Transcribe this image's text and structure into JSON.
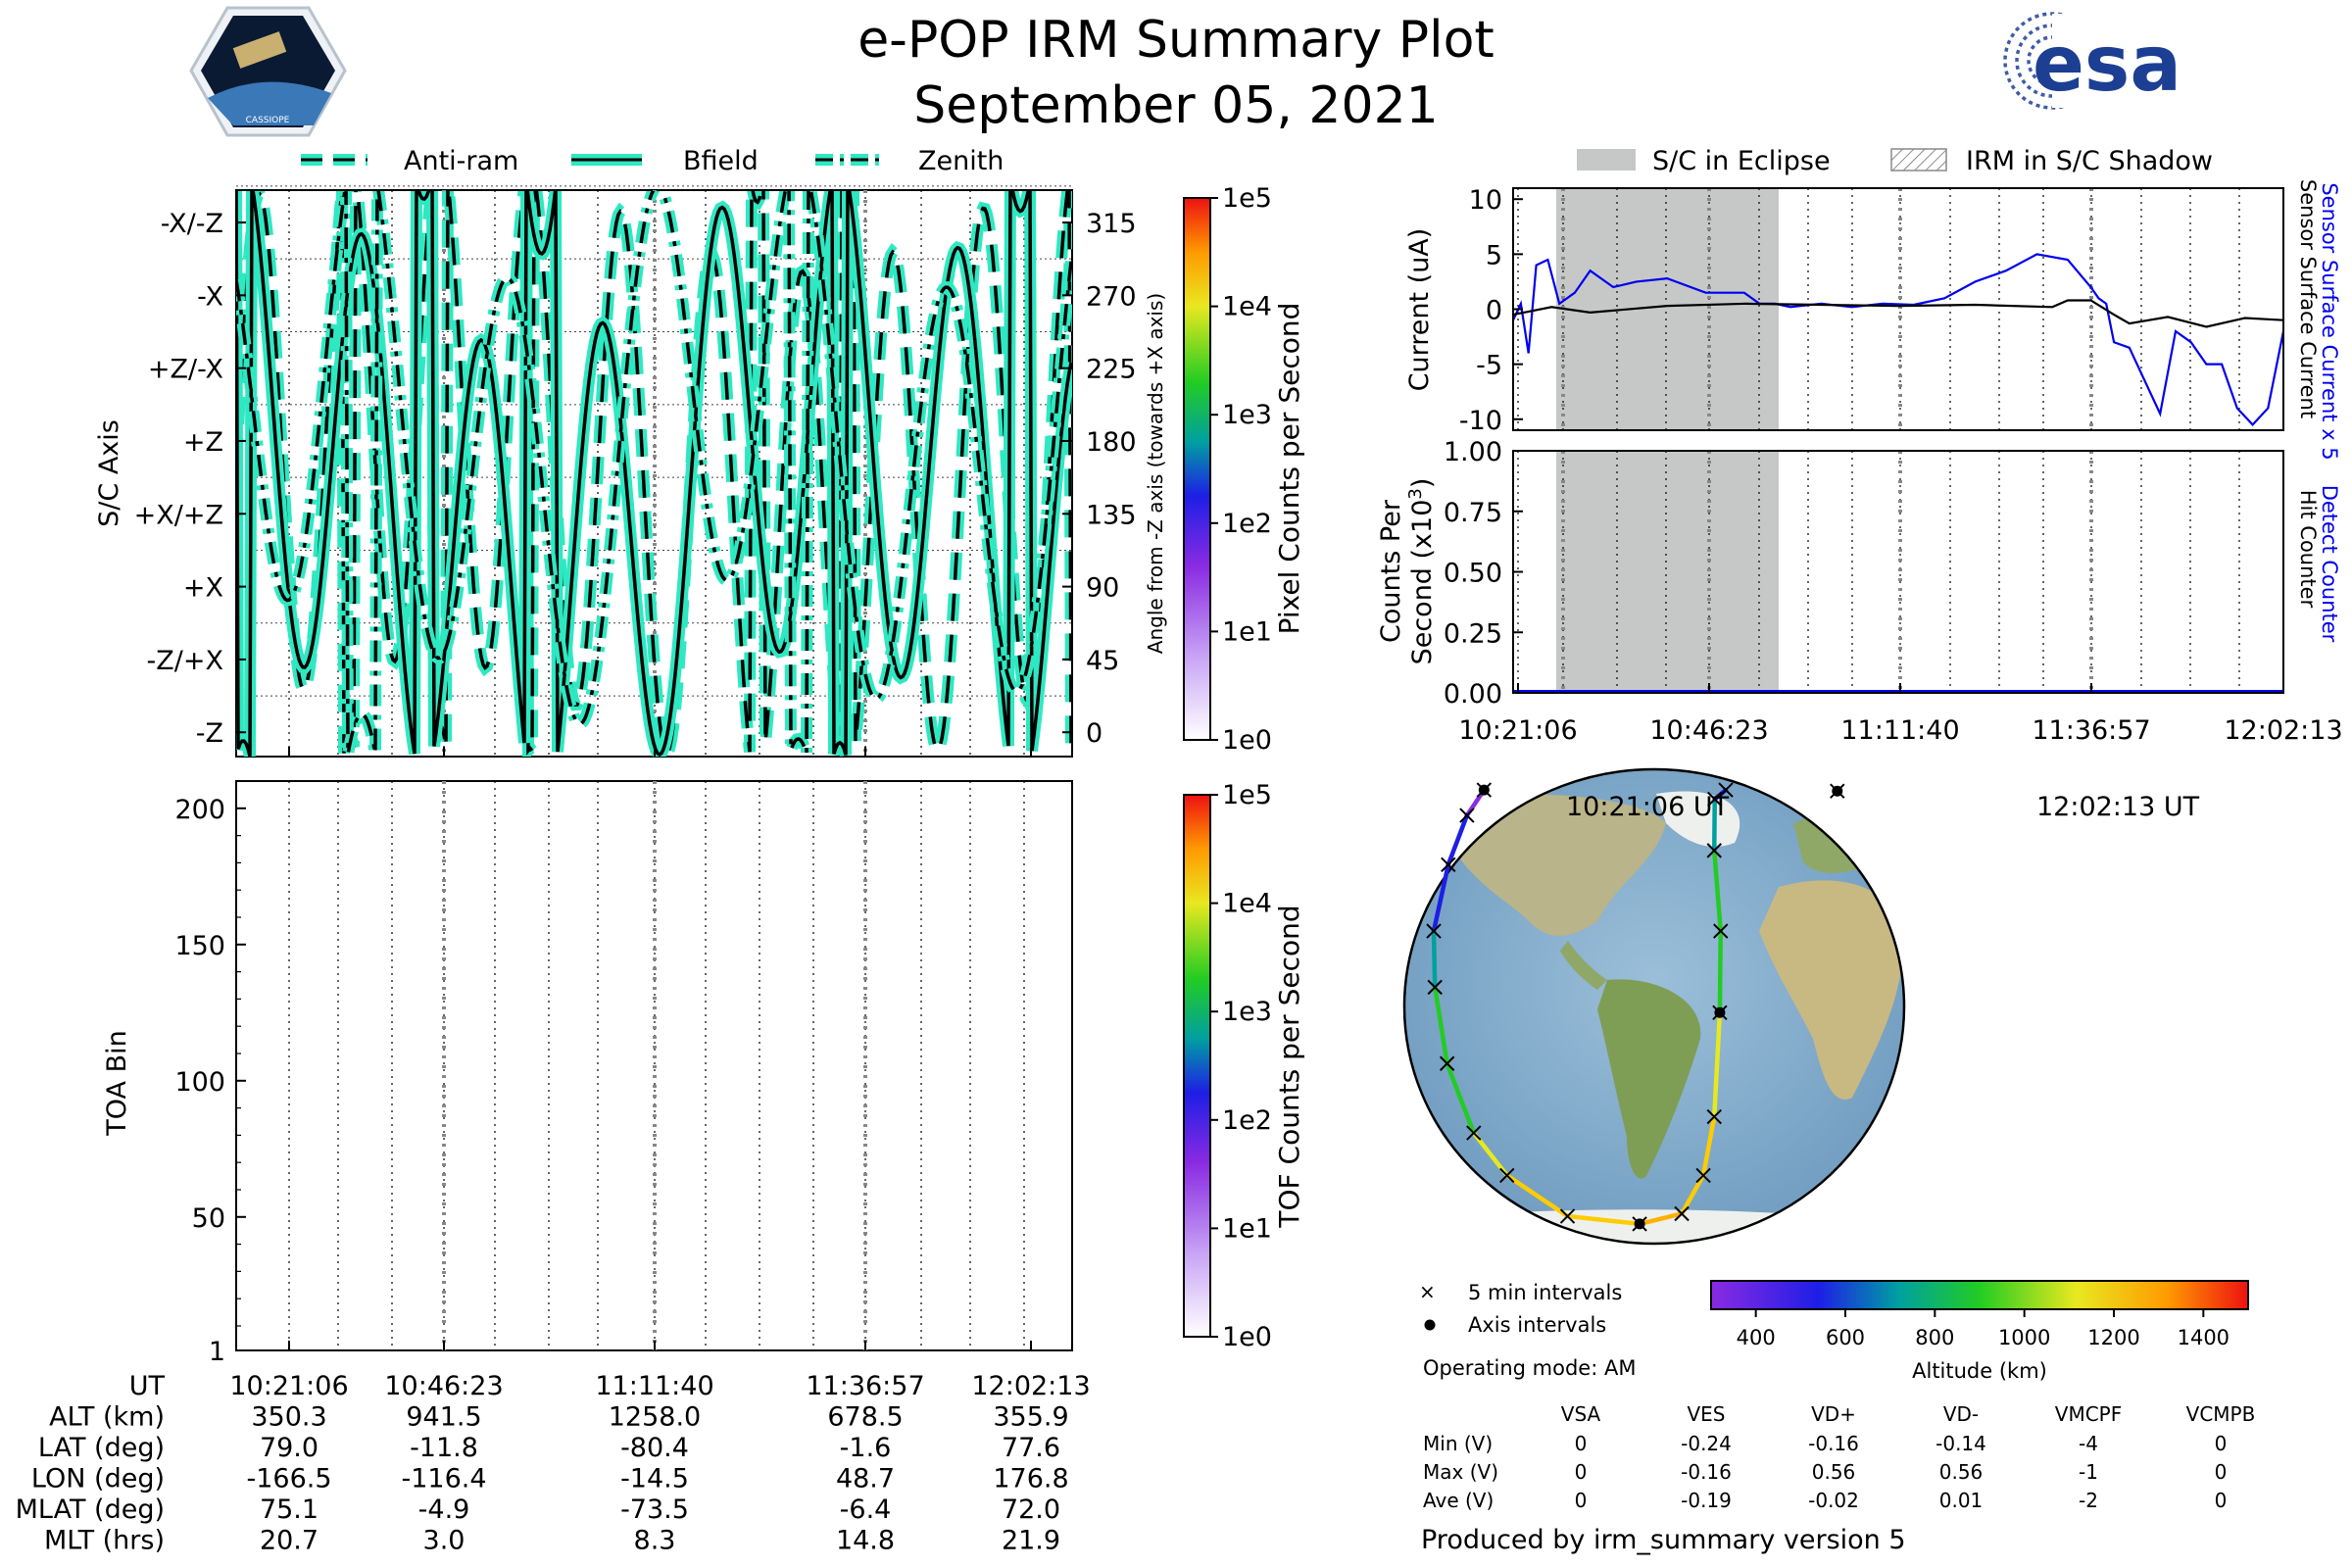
{
  "header": {
    "title": "e-POP IRM Summary Plot",
    "date": "September 05, 2021",
    "left_logo_text": "CASSIOPE",
    "right_logo_text": "esa"
  },
  "colors": {
    "cyan": "#2ee8c2",
    "blue_trace": "#0000ee",
    "eclipse": "#c6c8c8"
  },
  "chart_data": [
    {
      "id": "sc-axis",
      "type": "line",
      "legend": [
        "Anti-ram",
        "Bfield",
        "Zenith"
      ],
      "ylabel": "S/C Axis",
      "ylabel_right": "Angle from -Z axis (towards +X axis)",
      "y_categories": [
        "-Z",
        "-Z/+X",
        "+X",
        "+X/+Z",
        "+Z",
        "+Z/-X",
        "-X",
        "-X/-Z"
      ],
      "y_angles": [
        0,
        45,
        90,
        135,
        180,
        225,
        270,
        315
      ],
      "ylim": [
        -15,
        335
      ],
      "grid": true,
      "colorbar": {
        "label": "Pixel Counts per Second",
        "ticks": [
          "1e0",
          "1e1",
          "1e2",
          "1e3",
          "1e4",
          "1e5"
        ]
      }
    },
    {
      "id": "toa",
      "type": "heatmap",
      "ylabel": "TOA Bin",
      "y_ticks": [
        1,
        50,
        100,
        150,
        200
      ],
      "ylim": [
        1,
        210
      ],
      "colorbar": {
        "label": "TOF Counts per Second",
        "ticks": [
          "1e0",
          "1e1",
          "1e2",
          "1e3",
          "1e4",
          "1e5"
        ]
      }
    },
    {
      "id": "current",
      "type": "line",
      "ylabel": "Current (uA)",
      "y_ticks": [
        10,
        5,
        0,
        -5,
        -10
      ],
      "ylim": [
        -11,
        11
      ],
      "legend": [
        "S/C in Eclipse",
        "IRM in S/C Shadow"
      ],
      "right_labels": [
        "Sensor Surface Current x 5",
        "Sensor Surface Current"
      ],
      "series": [
        {
          "name": "Sensor Surface Current x 5",
          "color": "#0000ee",
          "x": [
            0,
            0.01,
            0.02,
            0.03,
            0.045,
            0.06,
            0.08,
            0.1,
            0.13,
            0.16,
            0.2,
            0.25,
            0.3,
            0.32,
            0.34,
            0.36,
            0.4,
            0.44,
            0.48,
            0.52,
            0.56,
            0.6,
            0.64,
            0.68,
            0.72,
            0.75,
            0.76,
            0.77,
            0.78,
            0.8,
            0.84,
            0.86,
            0.88,
            0.9,
            0.92,
            0.94,
            0.96,
            0.98,
            1
          ],
          "y": [
            -1,
            0.5,
            -4,
            4,
            4.5,
            0.5,
            1.5,
            3.5,
            2,
            2.5,
            2.8,
            1.5,
            1.5,
            0.5,
            0.5,
            0.2,
            0.5,
            0.2,
            0.5,
            0.4,
            1,
            2.5,
            3.5,
            5,
            4.5,
            2,
            1,
            0.5,
            -3,
            -3.5,
            -9.5,
            -2,
            -3,
            -5,
            -5,
            -9,
            -10.5,
            -9,
            -2
          ]
        },
        {
          "name": "Sensor Surface Current",
          "color": "#000000",
          "x": [
            0,
            0.05,
            0.1,
            0.2,
            0.3,
            0.4,
            0.5,
            0.6,
            0.7,
            0.72,
            0.75,
            0.78,
            0.8,
            0.85,
            0.9,
            0.95,
            1
          ],
          "y": [
            -0.5,
            0.2,
            -0.3,
            0.3,
            0.5,
            0.4,
            0.3,
            0.4,
            0.2,
            0.8,
            0.8,
            -0.5,
            -1.3,
            -0.7,
            -1.6,
            -0.8,
            -1
          ]
        }
      ]
    },
    {
      "id": "counts",
      "type": "line",
      "ylabel": "Counts Per Second (x10³)",
      "ylabel_line1": "Counts Per",
      "ylabel_line2": "Second (x10",
      "ylabel_exp": "3",
      "ylabel_close": ")",
      "y_ticks": [
        "1.00",
        "0.75",
        "0.50",
        "0.25",
        "0.00"
      ],
      "ylim": [
        0,
        1
      ],
      "right_labels": [
        "Detect Counter",
        "Hit Counter"
      ],
      "x_ticks": [
        "10:21:06",
        "10:46:23",
        "11:11:40",
        "11:36:57",
        "12:02:13"
      ],
      "series": [
        {
          "name": "Detect Counter",
          "color": "#0000ee",
          "x": [
            0,
            1
          ],
          "y": [
            0,
            0
          ]
        }
      ]
    },
    {
      "id": "map",
      "type": "scatter",
      "start_label": "10:21:06 UT",
      "end_label": "12:02:13 UT",
      "legend": [
        "5 min intervals",
        "Axis intervals"
      ],
      "operating_mode": "Operating mode: AM",
      "colorbar": {
        "label": "Altitude (km)",
        "ticks": [
          "400",
          "600",
          "800",
          "1000",
          "1200",
          "1400"
        ]
      },
      "track": [
        {
          "lon": -166.5,
          "lat": 79.0
        },
        {
          "lon": -160,
          "lat": 60
        },
        {
          "lon": -162,
          "lat": 40
        },
        {
          "lon": -166,
          "lat": 20
        },
        {
          "lon": -163,
          "lat": 5
        },
        {
          "lon": -155,
          "lat": -15
        },
        {
          "lon": -140,
          "lat": -35
        },
        {
          "lon": -120,
          "lat": -50
        },
        {
          "lon": -80,
          "lat": -72
        },
        {
          "lon": -14.5,
          "lat": -80.4
        },
        {
          "lon": 25,
          "lat": -70
        },
        {
          "lon": 40,
          "lat": -50
        },
        {
          "lon": 46,
          "lat": -30
        },
        {
          "lon": 48.7,
          "lat": -1.6
        },
        {
          "lon": 50,
          "lat": 20
        },
        {
          "lon": 48,
          "lat": 45
        },
        {
          "lon": 55,
          "lat": 70
        },
        {
          "lon": 70,
          "lat": 79
        },
        {
          "lon": 176.8,
          "lat": 77.6
        }
      ]
    }
  ],
  "time_axis": {
    "labels": [
      "10:21:06",
      "10:46:23",
      "11:11:40",
      "11:36:57",
      "12:02:13"
    ]
  },
  "info_table": {
    "rows": [
      {
        "label": "UT",
        "values": [
          "10:21:06",
          "10:46:23",
          "11:11:40",
          "11:36:57",
          "12:02:13"
        ]
      },
      {
        "label": "ALT (km)",
        "values": [
          "350.3",
          "941.5",
          "1258.0",
          "678.5",
          "355.9"
        ]
      },
      {
        "label": "LAT (deg)",
        "values": [
          "79.0",
          "-11.8",
          "-80.4",
          "-1.6",
          "77.6"
        ]
      },
      {
        "label": "LON (deg)",
        "values": [
          "-166.5",
          "-116.4",
          "-14.5",
          "48.7",
          "176.8"
        ]
      },
      {
        "label": "MLAT (deg)",
        "values": [
          "75.1",
          "-4.9",
          "-73.5",
          "-6.4",
          "72.0"
        ]
      },
      {
        "label": "MLT (hrs)",
        "values": [
          "20.7",
          "3.0",
          "8.3",
          "14.8",
          "21.9"
        ]
      }
    ]
  },
  "voltage_table": {
    "columns": [
      "VSA",
      "VES",
      "VD+",
      "VD-",
      "VMCPF",
      "VCMPB"
    ],
    "rows": [
      {
        "label": "Min (V)",
        "values": [
          "0",
          "-0.24",
          "-0.16",
          "-0.14",
          "-4",
          "0"
        ]
      },
      {
        "label": "Max (V)",
        "values": [
          "0",
          "-0.16",
          "0.56",
          "0.56",
          "-1",
          "0"
        ]
      },
      {
        "label": "Ave (V)",
        "values": [
          "0",
          "-0.19",
          "-0.02",
          "0.01",
          "-2",
          "0"
        ]
      }
    ]
  },
  "footer": {
    "produced_by": "Produced by irm_summary version 5"
  }
}
